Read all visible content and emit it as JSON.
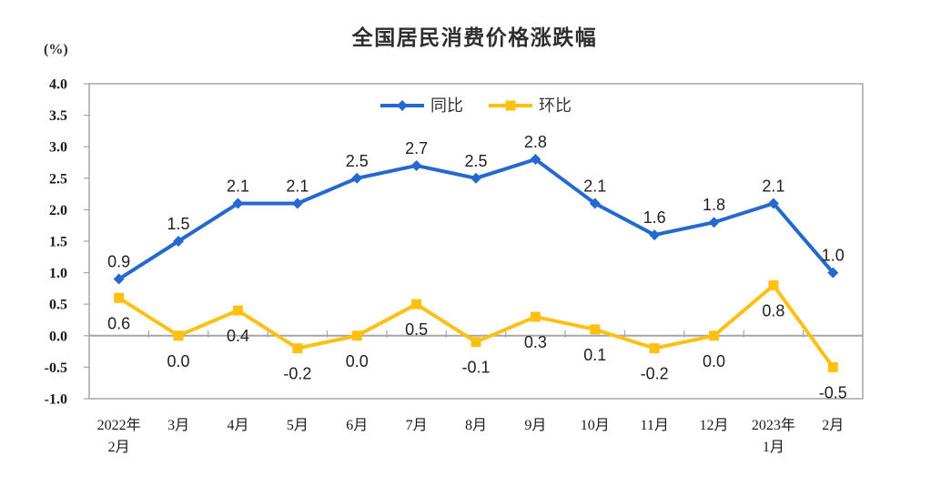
{
  "title": "全国居民消费价格涨跌幅",
  "y_axis_unit": "(%)",
  "chart_data": {
    "type": "line",
    "title": "全国居民消费价格涨跌幅",
    "ylabel": "(%)",
    "ylim": [
      -1.0,
      4.0
    ],
    "ytick_step": 0.5,
    "ytick_labels": [
      "4.0",
      "3.5",
      "3.0",
      "2.5",
      "2.0",
      "1.5",
      "1.0",
      "0.5",
      "0.0",
      "-0.5",
      "-1.0"
    ],
    "grid": false,
    "legend_position": "top-center-inside",
    "axis_color": "#a6a6a6",
    "categories": [
      [
        "2022年",
        "2月"
      ],
      [
        "3月"
      ],
      [
        "4月"
      ],
      [
        "5月"
      ],
      [
        "6月"
      ],
      [
        "7月"
      ],
      [
        "8月"
      ],
      [
        "9月"
      ],
      [
        "10月"
      ],
      [
        "11月"
      ],
      [
        "12月"
      ],
      [
        "2023年",
        "1月"
      ],
      [
        "2月"
      ]
    ],
    "series": [
      {
        "name": "同比",
        "color": "#2569D0",
        "marker": "diamond",
        "label_position": "above",
        "values": [
          0.9,
          1.5,
          2.1,
          2.1,
          2.5,
          2.7,
          2.5,
          2.8,
          2.1,
          1.6,
          1.8,
          2.1,
          1.0
        ]
      },
      {
        "name": "环比",
        "color": "#FDC013",
        "marker": "square",
        "label_position": "below",
        "values": [
          0.6,
          0.0,
          0.4,
          -0.2,
          0.0,
          0.5,
          -0.1,
          0.3,
          0.1,
          -0.2,
          0.0,
          0.8,
          -0.5
        ]
      }
    ]
  }
}
